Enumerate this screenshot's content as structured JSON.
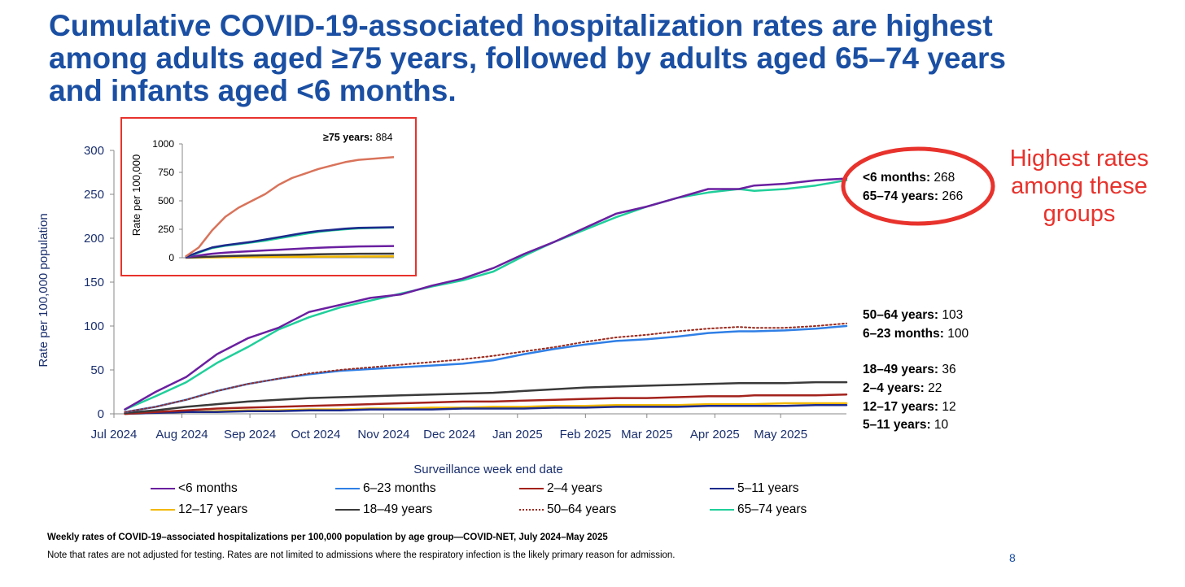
{
  "title_lines": [
    "Cumulative COVID-19-associated hospitalization rates are highest",
    "among adults aged ≥75 years, followed by adults aged 65–74 years",
    "and infants aged <6 months."
  ],
  "callout": [
    "Highest rates",
    "among these",
    "groups"
  ],
  "end_labels": [
    {
      "label": "<6 months:",
      "value": "268"
    },
    {
      "label": "65–74 years:",
      "value": "266"
    },
    {
      "label": "50–64 years:",
      "value": "103"
    },
    {
      "label": "6–23 months:",
      "value": "100"
    },
    {
      "label": "18–49 years:",
      "value": "36"
    },
    {
      "label": "2–4 years:",
      "value": "22"
    },
    {
      "label": "12–17 years:",
      "value": "12"
    },
    {
      "label": "5–11 years:",
      "value": "10"
    }
  ],
  "inset_label": {
    "label": "≥75 years:",
    "value": "884"
  },
  "footnote_1": "Weekly rates of COVID-19–associated hospitalizations per 100,000 population by age group—COVID-NET, July 2024–May 2025",
  "footnote_2": "Note that rates are not adjusted for testing. Rates are not limited to admissions where the respiratory infection is the likely primary reason for admission.",
  "page_number": "8",
  "colors": {
    "title": "#1a4fa3",
    "callout": "#e8322c",
    "inset_border": "#e8322c"
  },
  "chart_data": [
    {
      "type": "line",
      "xlabel": "Surveillance week end date",
      "ylabel": "Rate per 100,000 population",
      "ylim": [
        0,
        300
      ],
      "yticks": [
        0,
        50,
        100,
        150,
        200,
        250,
        300
      ],
      "xticks": [
        "Jul 2024",
        "Aug 2024",
        "Sep 2024",
        "Oct 2024",
        "Nov 2024",
        "Dec 2024",
        "Jan 2025",
        "Feb 2025",
        "Mar 2025",
        "Apr 2025",
        "May 2025"
      ],
      "x": [
        "2024-07-06",
        "2024-07-20",
        "2024-08-03",
        "2024-08-17",
        "2024-08-31",
        "2024-09-14",
        "2024-09-28",
        "2024-10-12",
        "2024-10-26",
        "2024-11-09",
        "2024-11-23",
        "2024-12-07",
        "2024-12-21",
        "2025-01-04",
        "2025-01-18",
        "2025-02-01",
        "2025-02-15",
        "2025-03-01",
        "2025-03-15",
        "2025-03-29",
        "2025-04-12",
        "2025-04-19",
        "2025-05-03",
        "2025-05-17",
        "2025-05-31"
      ],
      "legend_placement": "bottom",
      "series": [
        {
          "name": "<6 months",
          "color": "#6a1fa0",
          "dash": "solid",
          "values": [
            5,
            25,
            42,
            68,
            86,
            98,
            116,
            124,
            132,
            136,
            146,
            154,
            166,
            182,
            196,
            212,
            228,
            236,
            246,
            256,
            256,
            260,
            262,
            266,
            268
          ]
        },
        {
          "name": "6–23 months",
          "color": "#2f7fe6",
          "dash": "solid",
          "values": [
            2,
            8,
            16,
            26,
            34,
            40,
            45,
            49,
            51,
            53,
            55,
            57,
            61,
            68,
            74,
            79,
            83,
            85,
            88,
            92,
            94,
            94,
            95,
            97,
            100
          ]
        },
        {
          "name": "2–4 years",
          "color": "#a3221c",
          "dash": "solid",
          "values": [
            0,
            2,
            4,
            6,
            7,
            8,
            9,
            10,
            11,
            12,
            13,
            14,
            14,
            15,
            16,
            17,
            18,
            18,
            19,
            20,
            20,
            21,
            21,
            21,
            22
          ]
        },
        {
          "name": "5–11 years",
          "color": "#1c2a8c",
          "dash": "solid",
          "values": [
            0,
            1,
            2,
            2,
            3,
            3,
            4,
            4,
            5,
            5,
            5,
            6,
            6,
            6,
            7,
            7,
            8,
            8,
            8,
            9,
            9,
            9,
            9,
            10,
            10
          ]
        },
        {
          "name": "12–17 years",
          "color": "#f2b800",
          "dash": "solid",
          "values": [
            0,
            1,
            2,
            3,
            4,
            4,
            5,
            5,
            6,
            6,
            7,
            7,
            8,
            8,
            9,
            9,
            10,
            10,
            10,
            11,
            11,
            11,
            12,
            12,
            12
          ]
        },
        {
          "name": "18–49 years",
          "color": "#3a3a3a",
          "dash": "solid",
          "values": [
            1,
            4,
            8,
            11,
            14,
            16,
            18,
            19,
            20,
            21,
            22,
            23,
            24,
            26,
            28,
            30,
            31,
            32,
            33,
            34,
            35,
            35,
            35,
            36,
            36
          ]
        },
        {
          "name": "50–64 years",
          "color": "#9a2a1e",
          "dash": "dotted",
          "values": [
            2,
            8,
            16,
            26,
            34,
            40,
            46,
            50,
            53,
            56,
            59,
            62,
            66,
            71,
            76,
            82,
            87,
            90,
            94,
            97,
            99,
            98,
            98,
            100,
            103
          ]
        },
        {
          "name": "65–74 years",
          "color": "#1fcf9a",
          "dash": "solid",
          "values": [
            5,
            20,
            36,
            58,
            76,
            96,
            110,
            121,
            129,
            137,
            145,
            152,
            162,
            180,
            196,
            210,
            224,
            236,
            246,
            252,
            256,
            254,
            256,
            260,
            266
          ]
        }
      ]
    },
    {
      "type": "line",
      "title": "inset",
      "ylabel": "Rate per 100,000",
      "ylim": [
        0,
        1000
      ],
      "yticks": [
        0,
        250,
        500,
        750,
        1000
      ],
      "x": [
        "2024-07-06",
        "2024-07-27",
        "2024-08-17",
        "2024-09-07",
        "2024-09-28",
        "2024-10-19",
        "2024-11-09",
        "2024-11-30",
        "2024-12-21",
        "2025-01-11",
        "2025-02-01",
        "2025-02-22",
        "2025-03-15",
        "2025-04-05",
        "2025-05-31"
      ],
      "series": [
        {
          "name": "≥75 years",
          "color": "#d9735a",
          "values": [
            10,
            90,
            240,
            360,
            440,
            500,
            560,
            640,
            700,
            740,
            780,
            810,
            840,
            860,
            884
          ]
        },
        {
          "name": "<6 months",
          "color": "#1c2a8c",
          "values": [
            5,
            50,
            90,
            110,
            125,
            140,
            160,
            180,
            200,
            220,
            235,
            245,
            255,
            262,
            268
          ]
        },
        {
          "name": "65–74 years",
          "color": "#1fcf9a",
          "values": [
            5,
            45,
            85,
            105,
            120,
            135,
            150,
            170,
            190,
            210,
            228,
            240,
            250,
            258,
            266
          ]
        },
        {
          "name": "50–64 years",
          "color": "#6a1fa0",
          "values": [
            2,
            20,
            35,
            45,
            52,
            58,
            64,
            70,
            76,
            82,
            88,
            92,
            96,
            99,
            103
          ]
        },
        {
          "name": "18–49 years",
          "color": "#3a3a3a",
          "values": [
            1,
            6,
            10,
            14,
            17,
            20,
            22,
            24,
            26,
            28,
            30,
            32,
            33,
            35,
            36
          ]
        },
        {
          "name": "12–17 years",
          "color": "#f2b800",
          "values": [
            0,
            2,
            3,
            4,
            5,
            6,
            7,
            8,
            8,
            9,
            10,
            10,
            11,
            11,
            12
          ]
        }
      ]
    }
  ]
}
